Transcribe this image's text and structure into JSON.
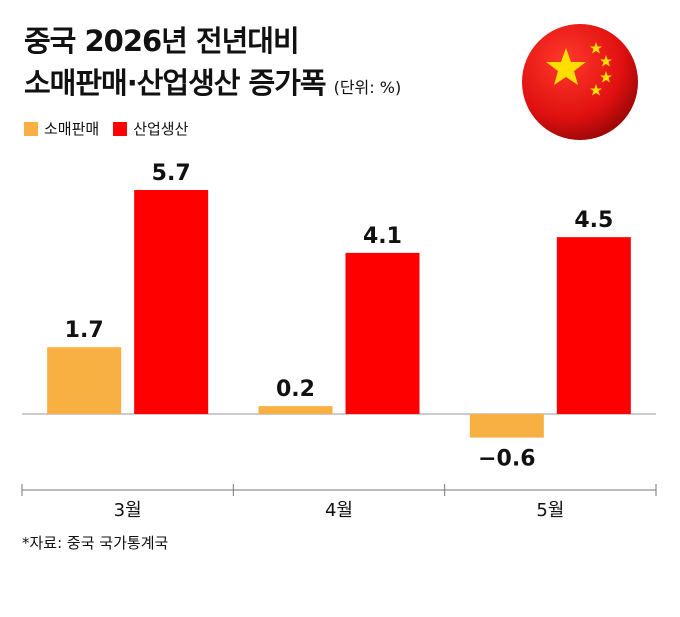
{
  "title_line1": "중국 2026년 전년대비",
  "title_line2": "소매판매·산업생산 증가폭",
  "unit": "(단위: %)",
  "source": "*자료: 중국 국가통계국",
  "colors": {
    "retail": "#F7B041",
    "industrial": "#FF0000",
    "axis": "#999999"
  },
  "chart_data": {
    "type": "bar",
    "categories": [
      "3월",
      "4월",
      "5월"
    ],
    "series": [
      {
        "name": "소매판매",
        "values": [
          1.7,
          0.2,
          -0.6
        ],
        "labels": [
          "1.7",
          "0.2",
          "−0.6"
        ]
      },
      {
        "name": "산업생산",
        "values": [
          5.7,
          4.1,
          4.5
        ],
        "labels": [
          "5.7",
          "4.1",
          "4.5"
        ]
      }
    ],
    "title": "중국 2026년 전년대비 소매판매·산업생산 증가폭",
    "ylabel": "",
    "xlabel": "",
    "ylim": [
      -0.9,
      6.6
    ],
    "grid": false,
    "legend_position": "top-left"
  }
}
